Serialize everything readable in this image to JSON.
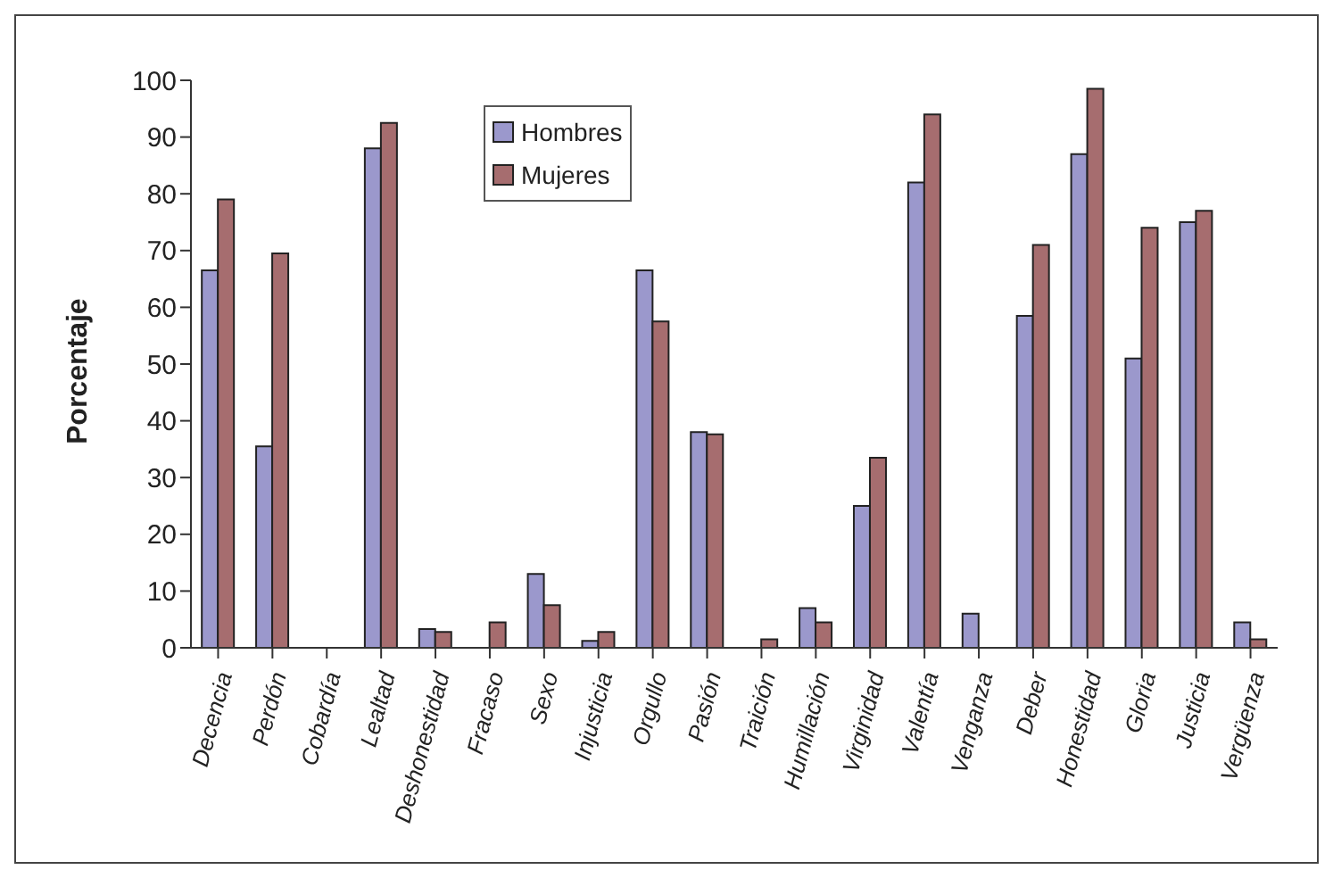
{
  "chart_data": {
    "type": "bar",
    "ylabel": "Porcentaje",
    "categories": [
      "Decencia",
      "Perdón",
      "Cobardía",
      "Lealtad",
      "Deshonestidad",
      "Fracaso",
      "Sexo",
      "Injusticia",
      "Orgullo",
      "Pasión",
      "Traición",
      "Humillación",
      "Virginidad",
      "Valentía",
      "Venganza",
      "Deber",
      "Honestidad",
      "Gloria",
      "Justicia",
      "Vergüenza"
    ],
    "series": [
      {
        "name": "Hombres",
        "color": "#9b98cc",
        "values": [
          66.5,
          35.5,
          0,
          88,
          3.3,
          0,
          13,
          1.2,
          66.5,
          38,
          0,
          7,
          25,
          82,
          6,
          58.5,
          87,
          51,
          75,
          4.5
        ]
      },
      {
        "name": "Mujeres",
        "color": "#a66d6f",
        "values": [
          79,
          69.5,
          0,
          92.5,
          2.8,
          4.5,
          7.5,
          2.8,
          57.5,
          37.6,
          1.5,
          4.5,
          33.5,
          94,
          0,
          71,
          98.5,
          74,
          77,
          1.5
        ]
      }
    ],
    "ylim": [
      0,
      100
    ],
    "yticks": [
      0,
      10,
      20,
      30,
      40,
      50,
      60,
      70,
      80,
      90,
      100
    ],
    "legend": "top left"
  }
}
